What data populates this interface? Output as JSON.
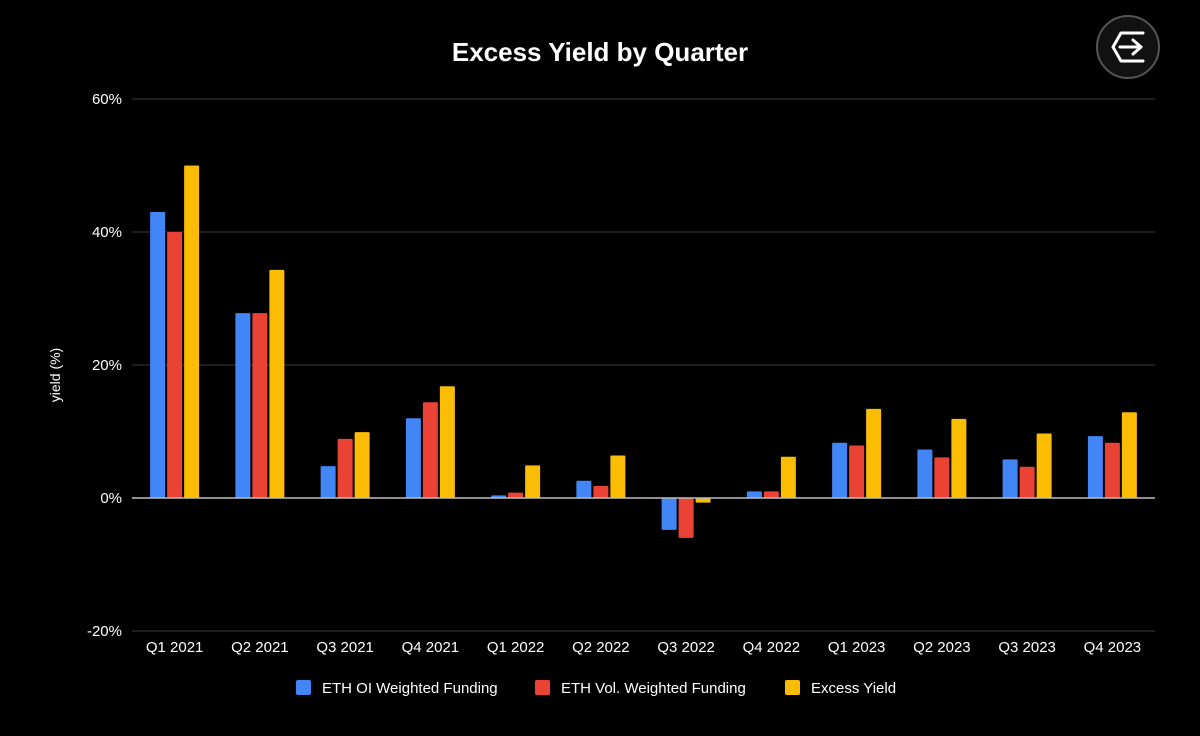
{
  "chart_data": {
    "type": "bar",
    "title": "Excess Yield by Quarter",
    "ylabel": "yield (%)",
    "xlabel": "",
    "ylim": [
      -20,
      60
    ],
    "yticks": [
      -20,
      0,
      20,
      40,
      60
    ],
    "ytick_labels": [
      "-20%",
      "0%",
      "20%",
      "40%",
      "60%"
    ],
    "grid": true,
    "legend_position": "bottom",
    "categories": [
      "Q1 2021",
      "Q2 2021",
      "Q3 2021",
      "Q4 2021",
      "Q1 2022",
      "Q2 2022",
      "Q3 2022",
      "Q4 2022",
      "Q1 2023",
      "Q2 2023",
      "Q3 2023",
      "Q4 2023"
    ],
    "series": [
      {
        "name": "ETH OI Weighted Funding",
        "color": "#4285f4",
        "values": [
          43,
          27.8,
          4.8,
          12,
          0.4,
          2.6,
          -4.8,
          1,
          8.3,
          7.3,
          5.8,
          9.3
        ]
      },
      {
        "name": "ETH Vol. Weighted Funding",
        "color": "#ea4335",
        "values": [
          40,
          27.8,
          8.9,
          14.4,
          0.8,
          1.8,
          -6,
          1,
          7.9,
          6.1,
          4.7,
          8.3
        ]
      },
      {
        "name": "Excess Yield",
        "color": "#fbbc04",
        "values": [
          50,
          34.3,
          9.9,
          16.8,
          4.9,
          6.4,
          -0.7,
          6.2,
          13.4,
          11.9,
          9.7,
          12.9
        ]
      }
    ]
  },
  "logo": {
    "icon": "exponential-logo-icon"
  }
}
